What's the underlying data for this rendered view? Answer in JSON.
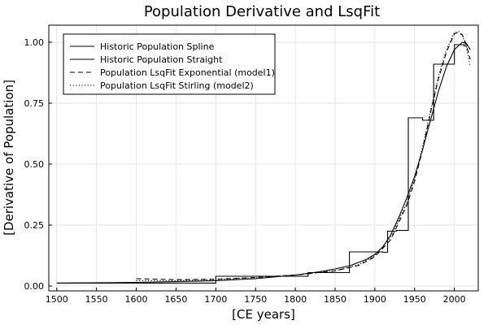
{
  "chart_data": {
    "type": "line",
    "title": "Population Derivative and LsqFit",
    "xlabel": "[CE years]",
    "ylabel": "[Derivative of Population]",
    "xlim": [
      1490,
      2030
    ],
    "ylim": [
      -0.02,
      1.07
    ],
    "xticks": [
      1500,
      1550,
      1600,
      1650,
      1700,
      1750,
      1800,
      1850,
      1900,
      1950,
      2000
    ],
    "xtick_labels": [
      "1500",
      "1550",
      "1600",
      "1650",
      "1700",
      "1750",
      "1800",
      "1850",
      "1900",
      "1950",
      "2000"
    ],
    "yticks": [
      0.0,
      0.25,
      0.5,
      0.75,
      1.0
    ],
    "ytick_labels": [
      "0.00",
      "0.25",
      "0.50",
      "0.75",
      "1.00"
    ],
    "grid": true,
    "legend_position": "top-left",
    "series": [
      {
        "name": "Historic Population Spline",
        "style": "solid",
        "x": [
          1500,
          1550,
          1600,
          1650,
          1700,
          1750,
          1800,
          1830,
          1850,
          1870,
          1890,
          1900,
          1910,
          1920,
          1930,
          1940,
          1950,
          1960,
          1970,
          1980,
          1990,
          2000,
          2010,
          2015,
          2020
        ],
        "y": [
          0.012,
          0.013,
          0.015,
          0.018,
          0.022,
          0.03,
          0.045,
          0.058,
          0.07,
          0.085,
          0.11,
          0.13,
          0.16,
          0.21,
          0.28,
          0.36,
          0.45,
          0.56,
          0.68,
          0.8,
          0.9,
          0.97,
          1.0,
          0.995,
          0.97
        ]
      },
      {
        "name": "Historic Population Straight",
        "style": "solid",
        "x": [
          1500,
          1700,
          1700,
          1816,
          1816,
          1868,
          1868,
          1910,
          1910,
          1916,
          1916,
          1927,
          1927,
          1942,
          1942,
          1950,
          1950,
          1960,
          1960,
          1974,
          1974,
          1977,
          1977,
          2000,
          2000,
          2012,
          2012,
          2017
        ],
        "y": [
          0.012,
          0.012,
          0.04,
          0.04,
          0.055,
          0.055,
          0.14,
          0.14,
          0.138,
          0.138,
          0.225,
          0.225,
          0.228,
          0.228,
          0.69,
          0.69,
          0.69,
          0.69,
          0.68,
          0.68,
          0.91,
          0.91,
          0.91,
          0.91,
          0.99,
          0.99,
          0.985,
          0.985
        ]
      },
      {
        "name": "Population LsqFit Exponential (model1)",
        "style": "dashed",
        "x": [
          1600,
          1650,
          1700,
          1750,
          1800,
          1850,
          1880,
          1900,
          1920,
          1940,
          1950,
          1960,
          1970,
          1980,
          1990,
          2000,
          2005,
          2010,
          2015,
          2020
        ],
        "y": [
          0.03,
          0.026,
          0.028,
          0.035,
          0.045,
          0.062,
          0.085,
          0.12,
          0.19,
          0.33,
          0.43,
          0.56,
          0.71,
          0.85,
          0.96,
          1.035,
          1.04,
          1.03,
          0.99,
          0.93
        ]
      },
      {
        "name": "Population LsqFit Stirling (model2)",
        "style": "dotted",
        "x": [
          1600,
          1650,
          1700,
          1750,
          1800,
          1850,
          1880,
          1900,
          1920,
          1940,
          1950,
          1960,
          1970,
          1980,
          1990,
          2000,
          2005,
          2010,
          2015,
          2020
        ],
        "y": [
          0.022,
          0.022,
          0.026,
          0.034,
          0.045,
          0.063,
          0.088,
          0.125,
          0.2,
          0.34,
          0.44,
          0.57,
          0.72,
          0.86,
          0.97,
          1.04,
          1.045,
          1.03,
          0.98,
          0.9
        ]
      }
    ]
  }
}
